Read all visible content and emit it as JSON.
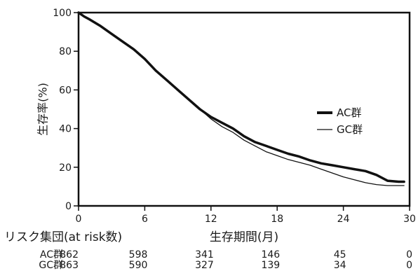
{
  "chart_data": {
    "type": "line",
    "title": "",
    "xlabel": "生存期間(月)",
    "ylabel": "生存率(%)",
    "xlim": [
      0,
      30
    ],
    "ylim": [
      0,
      100
    ],
    "x_ticks": [
      0,
      6,
      12,
      18,
      24,
      30
    ],
    "y_ticks": [
      0,
      20,
      40,
      60,
      80,
      100
    ],
    "grid": false,
    "legend_position": "right",
    "series": [
      {
        "name": "AC群",
        "color": "#111111",
        "style": "thick",
        "x": [
          0,
          0.5,
          1,
          2,
          3,
          4,
          5,
          6,
          7,
          8,
          9,
          10,
          11,
          12,
          13,
          14,
          15,
          16,
          17,
          18,
          19,
          20,
          21,
          22,
          23,
          24,
          25,
          26,
          27,
          28,
          29,
          29.5
        ],
        "y": [
          100,
          98,
          96.5,
          93,
          89,
          85,
          81,
          76,
          70,
          65,
          60,
          55,
          50,
          46,
          43,
          40,
          36,
          33,
          31,
          29,
          27,
          25.5,
          23.5,
          22,
          21,
          20,
          19,
          18,
          16,
          13,
          12.5,
          12.5
        ]
      },
      {
        "name": "GC群",
        "color": "#111111",
        "style": "thin",
        "x": [
          0,
          0.5,
          1,
          2,
          3,
          4,
          5,
          6,
          7,
          8,
          9,
          10,
          11,
          12,
          13,
          14,
          15,
          16,
          17,
          18,
          19,
          20,
          21,
          22,
          23,
          24,
          25,
          26,
          27,
          28,
          29,
          29.5
        ],
        "y": [
          100,
          98,
          96.5,
          93,
          89,
          85,
          81,
          76,
          70,
          65,
          60,
          55,
          50,
          45,
          41,
          38,
          34,
          31,
          28,
          26,
          24,
          22.5,
          21,
          19,
          17,
          15,
          13.5,
          12,
          11,
          10.5,
          10.5,
          10.5
        ]
      }
    ],
    "risk_table": {
      "label": "リスク集団(at risk数)",
      "rows": [
        {
          "group": "AC群",
          "counts": [
            "862",
            "598",
            "341",
            "146",
            "45",
            "0"
          ]
        },
        {
          "group": "GC群",
          "counts": [
            "863",
            "590",
            "327",
            "139",
            "34",
            "0"
          ]
        }
      ]
    }
  }
}
